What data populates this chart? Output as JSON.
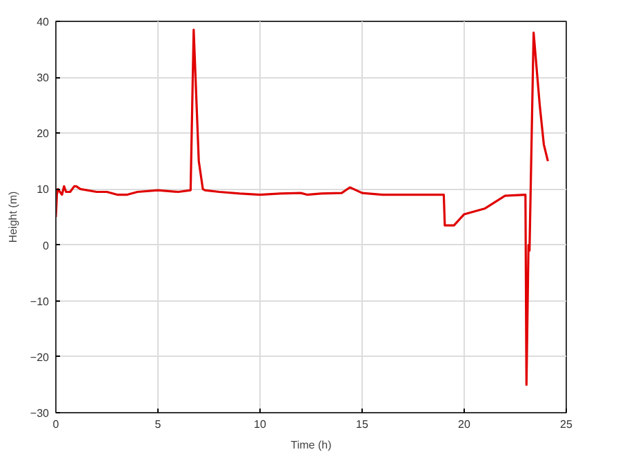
{
  "chart_data": {
    "type": "line",
    "xlabel": "Time (h)",
    "ylabel": "Height (m)",
    "xlim": [
      0,
      25
    ],
    "xticks": [
      0,
      5,
      10,
      15,
      20,
      25
    ],
    "ylim": [
      -30,
      40
    ],
    "yticks": [
      -30,
      -20,
      -10,
      0,
      10,
      20,
      30,
      40
    ],
    "grid": true,
    "series": [
      {
        "color": "#e00000",
        "x": [
          0,
          0.05,
          0.1,
          0.2,
          0.3,
          0.4,
          0.5,
          0.7,
          0.9,
          1.0,
          1.2,
          2,
          2.5,
          3,
          3.5,
          4,
          5,
          6,
          6.6,
          6.75,
          7.0,
          7.2,
          7.3,
          8,
          9,
          10,
          11,
          12,
          12.3,
          13,
          14,
          14.4,
          15,
          16,
          17,
          18,
          19.0,
          19.05,
          19.5,
          20,
          21,
          22,
          23,
          23.05,
          23.15,
          23.2,
          23.4,
          23.7,
          23.9,
          24.1
        ],
        "values": [
          5,
          9,
          10,
          9.5,
          9,
          10.5,
          9.5,
          9.5,
          10.5,
          10.5,
          10,
          9.5,
          9.5,
          9,
          9,
          9.5,
          9.8,
          9.5,
          9.8,
          38.5,
          15,
          10,
          9.8,
          9.5,
          9.2,
          9,
          9.2,
          9.3,
          9,
          9.2,
          9.3,
          10.3,
          9.3,
          9,
          9,
          9,
          9,
          3.5,
          3.5,
          5.5,
          6.5,
          8.8,
          9,
          -25,
          0,
          -1,
          38,
          25,
          18,
          15
        ]
      }
    ]
  }
}
